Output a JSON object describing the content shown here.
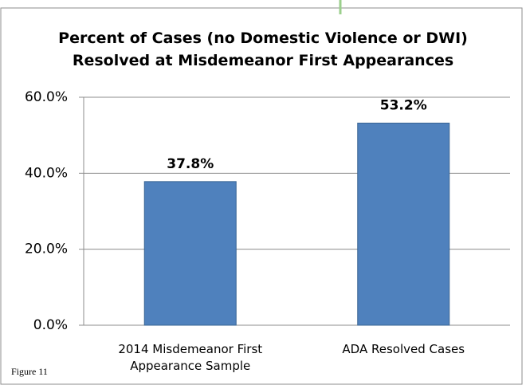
{
  "caption": "Figure 11",
  "chart_data": {
    "type": "bar",
    "title": "Percent of Cases (no Domestic Violence or DWI) Resolved at Misdemeanor First Appearances",
    "categories": [
      "2014 Misdemeanor First Appearance Sample",
      "ADA Resolved Cases"
    ],
    "values": [
      37.8,
      53.2
    ],
    "value_labels": [
      "37.8%",
      "53.2%"
    ],
    "color": "#4f81bd",
    "ylim": [
      0,
      60
    ],
    "yticks": [
      {
        "value": 0,
        "label": "0.0%"
      },
      {
        "value": 20,
        "label": "20.0%"
      },
      {
        "value": 40,
        "label": "40.0%"
      },
      {
        "value": 60,
        "label": "60.0%"
      }
    ],
    "grid": true
  }
}
